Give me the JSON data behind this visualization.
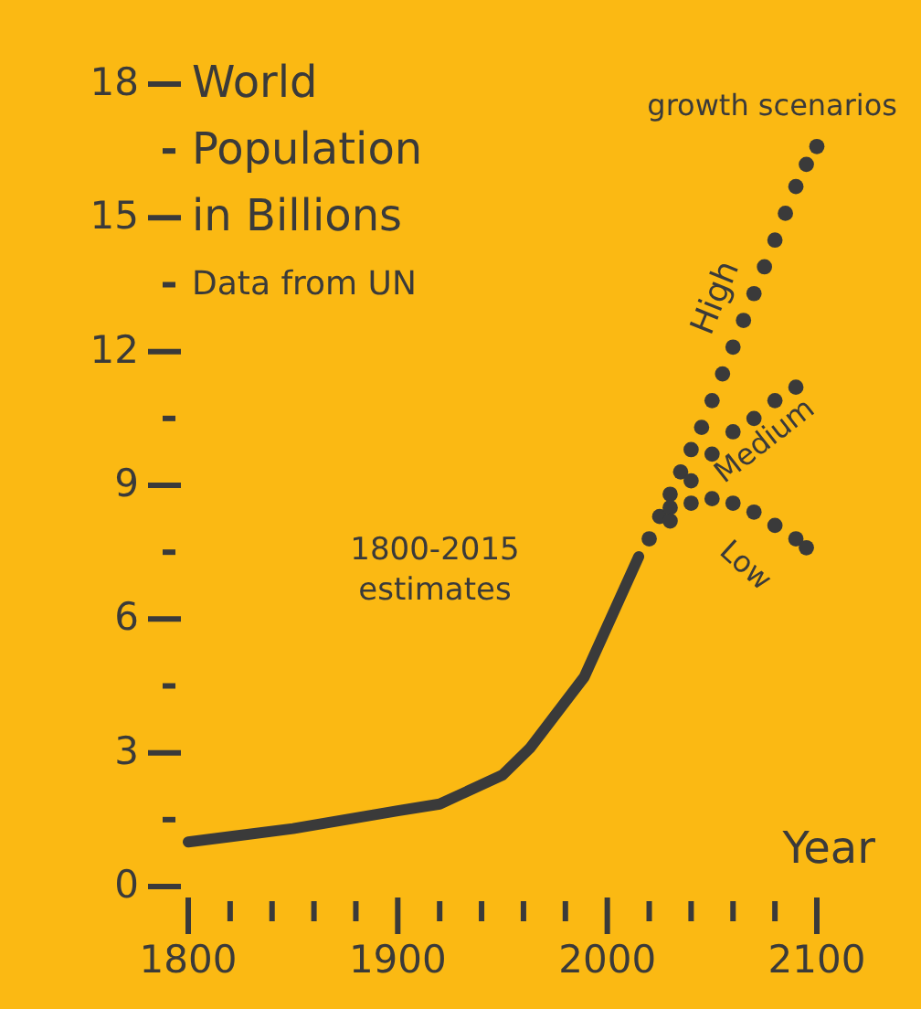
{
  "chart_data": {
    "type": "line",
    "title": "World Population in Billions",
    "subtitle": "Data from UN",
    "xlabel": "Year",
    "xlim": [
      1800,
      2100
    ],
    "ylim": [
      0,
      18
    ],
    "xticks": [
      1800,
      {
        "value": 1820,
        "label": null
      },
      {
        "value": 1840,
        "label": null
      },
      {
        "value": 1860,
        "label": null
      },
      {
        "value": 1880,
        "label": null
      },
      1900,
      {
        "value": 1920,
        "label": null
      },
      {
        "value": 1940,
        "label": null
      },
      {
        "value": 1960,
        "label": null
      },
      {
        "value": 1980,
        "label": null
      },
      2000,
      {
        "value": 2020,
        "label": null
      },
      {
        "value": 2040,
        "label": null
      },
      {
        "value": 2060,
        "label": null
      },
      {
        "value": 2080,
        "label": null
      },
      2100
    ],
    "yticks": [
      0,
      {
        "value": 1.5,
        "label": null
      },
      3,
      {
        "value": 4.5,
        "label": null
      },
      6,
      {
        "value": 7.5,
        "label": null
      },
      9,
      {
        "value": 10.5,
        "label": null
      },
      12,
      {
        "value": 13.5,
        "label": null
      },
      15,
      {
        "value": 16.5,
        "label": null
      },
      18
    ],
    "grid": false,
    "legend": false,
    "annotations": [
      "growth scenarios",
      "1800-2015 estimates"
    ],
    "series": [
      {
        "color": "#3a3a3a",
        "line_style": "solid",
        "marker": "none",
        "x": [
          1800,
          1850,
          1900,
          1920,
          1950,
          1963,
          1989,
          2015
        ],
        "values": [
          1.0,
          1.3,
          1.7,
          1.85,
          2.5,
          3.1,
          4.7,
          7.4
        ]
      },
      {
        "name": "High",
        "type": "scatter",
        "color": "#3a3a3a",
        "marker": "circle",
        "x": [
          2020,
          2025,
          2030,
          2035,
          2040,
          2045,
          2050,
          2055,
          2060,
          2065,
          2070,
          2075,
          2080,
          2085,
          2090,
          2095,
          2100
        ],
        "values": [
          7.8,
          8.3,
          8.8,
          9.3,
          9.8,
          10.3,
          10.9,
          11.5,
          12.1,
          12.7,
          13.3,
          13.9,
          14.5,
          15.1,
          15.7,
          16.2,
          16.6
        ]
      },
      {
        "name": "Medium",
        "type": "scatter",
        "color": "#3a3a3a",
        "marker": "circle",
        "x": [
          2030,
          2040,
          2050,
          2060,
          2070,
          2080,
          2090
        ],
        "values": [
          8.5,
          9.1,
          9.7,
          10.2,
          10.5,
          10.9,
          11.2
        ]
      },
      {
        "name": "Low",
        "type": "scatter",
        "color": "#3a3a3a",
        "marker": "circle",
        "x": [
          2030,
          2040,
          2050,
          2060,
          2070,
          2080,
          2090,
          2095
        ],
        "values": [
          8.2,
          8.6,
          8.7,
          8.6,
          8.4,
          8.1,
          7.8,
          7.6
        ]
      }
    ]
  }
}
